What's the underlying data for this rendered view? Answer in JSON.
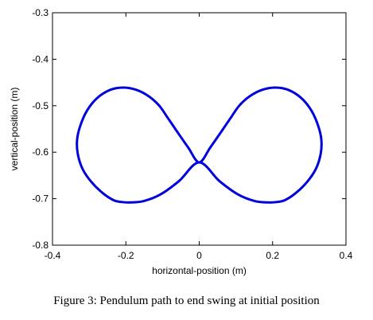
{
  "caption": "Figure 3: Pendulum path to end swing at initial position",
  "chart_data": {
    "type": "line",
    "xlabel": "horizontal-position (m)",
    "ylabel": "vertical-position (m)",
    "xlim": [
      -0.4,
      0.4
    ],
    "ylim": [
      -0.8,
      -0.3
    ],
    "xticks": [
      -0.4,
      -0.2,
      0,
      0.2,
      0.4
    ],
    "xtick_labels": [
      "-0.4",
      "-0.2",
      "0",
      "0.2",
      "0.4"
    ],
    "yticks": [
      -0.3,
      -0.4,
      -0.5,
      -0.6,
      -0.7,
      -0.8
    ],
    "ytick_labels": [
      "-0.3",
      "-0.4",
      "-0.5",
      "-0.6",
      "-0.7",
      "-0.8"
    ],
    "grid": false,
    "series": [
      {
        "color": "#0000dd",
        "x": [
          0,
          0.055,
          0.106,
          0.151,
          0.187,
          0.213,
          0.234,
          0.263,
          0.294,
          0.318,
          0.331,
          0.333,
          0.325,
          0.307,
          0.279,
          0.243,
          0.207,
          0.171,
          0.137,
          0.109,
          0.085,
          0.06,
          0.03,
          0,
          -0.03,
          -0.06,
          -0.085,
          -0.109,
          -0.137,
          -0.171,
          -0.207,
          -0.243,
          -0.279,
          -0.307,
          -0.325,
          -0.333,
          -0.331,
          -0.318,
          -0.294,
          -0.263,
          -0.234,
          -0.213,
          -0.187,
          -0.151,
          -0.106,
          -0.055,
          0
        ],
        "y": [
          -0.622,
          -0.662,
          -0.691,
          -0.705,
          -0.708,
          -0.707,
          -0.703,
          -0.688,
          -0.664,
          -0.636,
          -0.604,
          -0.574,
          -0.545,
          -0.512,
          -0.484,
          -0.466,
          -0.461,
          -0.466,
          -0.48,
          -0.5,
          -0.527,
          -0.556,
          -0.59,
          -0.622,
          -0.59,
          -0.556,
          -0.527,
          -0.5,
          -0.48,
          -0.466,
          -0.461,
          -0.466,
          -0.484,
          -0.512,
          -0.545,
          -0.574,
          -0.604,
          -0.636,
          -0.664,
          -0.688,
          -0.703,
          -0.707,
          -0.708,
          -0.705,
          -0.691,
          -0.662,
          -0.622
        ]
      }
    ]
  }
}
